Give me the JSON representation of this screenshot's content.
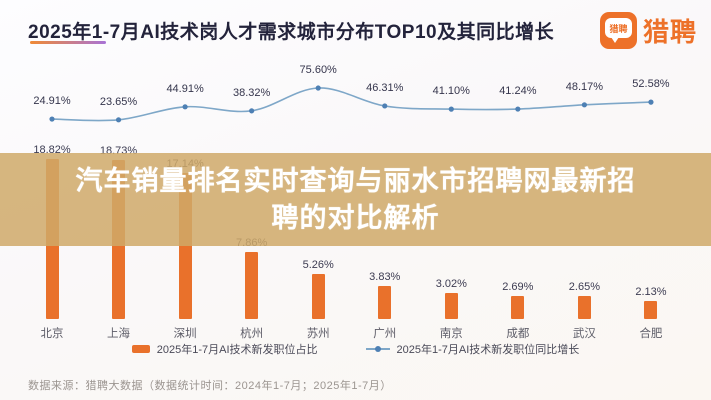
{
  "header": {
    "title": "2025年1-7月AI技术岗人才需求城市分布TOP10及其同比增长",
    "brand": {
      "bubble_text": "猎聘",
      "wordmark": "猎聘"
    }
  },
  "overlay": {
    "line1": "汽车销量排名实时查询与丽水市招聘网最新招",
    "line2": "聘的对比解析"
  },
  "chart_data": {
    "type": "bar",
    "title": "2025年1-7月AI技术岗人才需求城市分布TOP10及其同比增长",
    "categories": [
      "北京",
      "上海",
      "深圳",
      "杭州",
      "苏州",
      "广州",
      "南京",
      "成都",
      "武汉",
      "合肥"
    ],
    "series": [
      {
        "name": "2025年1-7月AI技术新发职位占比",
        "type": "bar",
        "unit": "%",
        "color": "#e9712b",
        "values": [
          18.82,
          18.73,
          17.14,
          7.86,
          5.26,
          3.83,
          3.02,
          2.69,
          2.65,
          2.13
        ]
      },
      {
        "name": "2025年1-7月AI技术新发职位同比增长",
        "type": "line",
        "unit": "%",
        "color": "#7ea7c8",
        "values": [
          24.91,
          23.65,
          44.91,
          38.32,
          75.6,
          46.31,
          41.1,
          41.24,
          48.17,
          52.58
        ]
      }
    ],
    "legend_position": "bottom",
    "grid": false
  },
  "legend": {
    "bar_label": "2025年1-7月AI技术新发职位占比",
    "line_label": "2025年1-7月AI技术新发职位同比增长"
  },
  "footer": {
    "source": "数据来源：猎聘大数据（数据统计时间：2024年1-7月；2025年1-7月）"
  },
  "colors": {
    "bar": "#e9712b",
    "line": "#7ea7c8",
    "line_dot": "#4e80b4",
    "banner": "rgba(207,169,104,0.85)",
    "brand": "#ed7129"
  }
}
